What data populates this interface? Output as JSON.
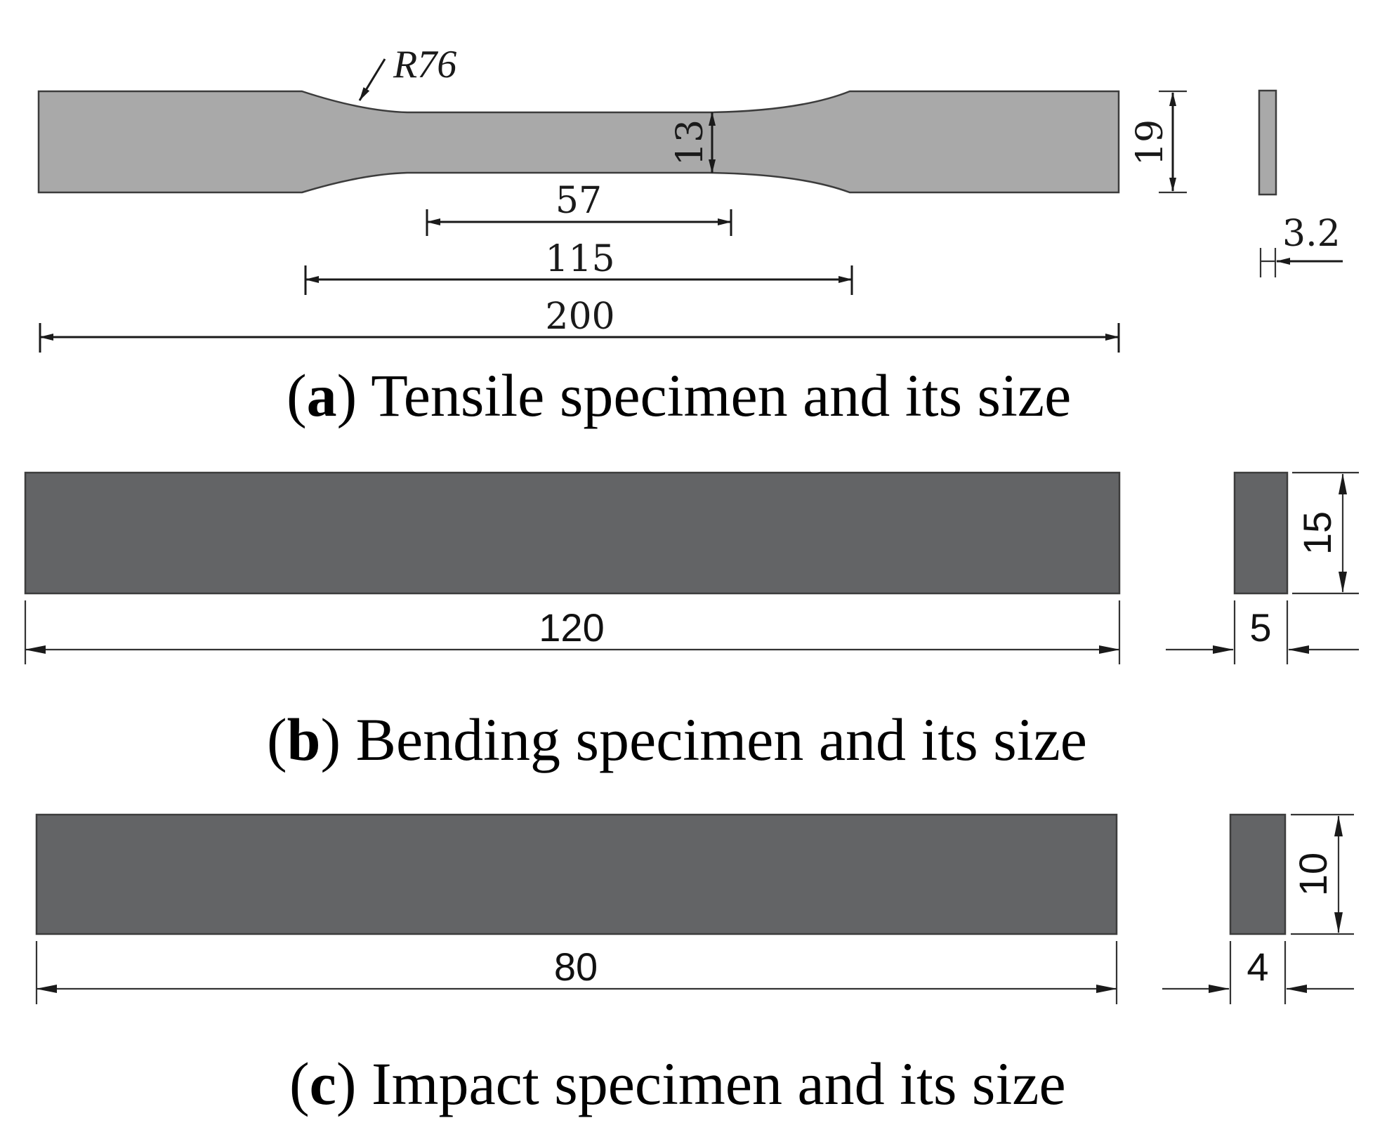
{
  "colors": {
    "tensile_fill": "#a9a9a9",
    "block_fill": "#636466",
    "outline": "#3c3c3c",
    "line": "#1a1a1a"
  },
  "panel_a": {
    "caption_letter": "a",
    "caption_text": " Tensile specimen and its size",
    "radius_label": "R76",
    "gauge_width": "13",
    "grip_width": "19",
    "thickness": "3.2",
    "gauge_length": "57",
    "narrow_length": "115",
    "overall_length": "200"
  },
  "panel_b": {
    "caption_letter": "b",
    "caption_text": " Bending specimen and its size",
    "length": "120",
    "height": "15",
    "width": "5"
  },
  "panel_c": {
    "caption_letter": "c",
    "caption_text": " Impact specimen and its size",
    "length": "80",
    "height": "10",
    "width": "4"
  }
}
